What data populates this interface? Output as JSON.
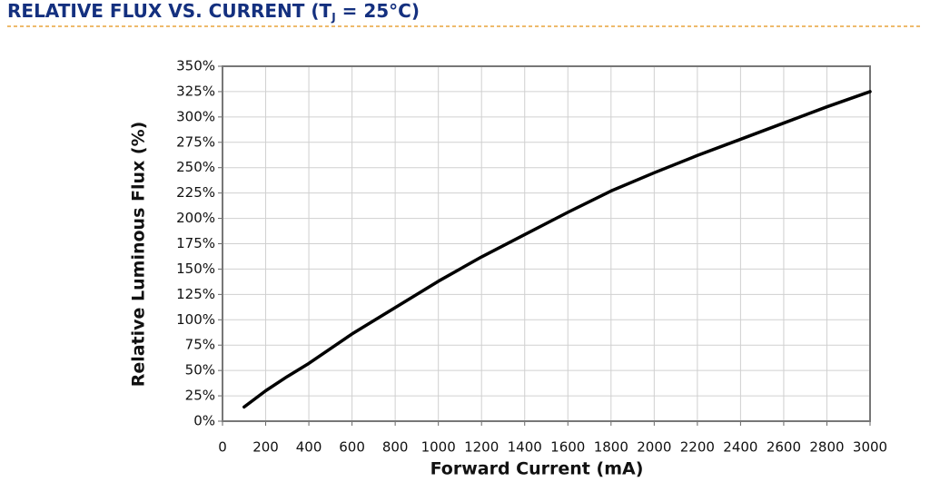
{
  "chart_data": {
    "type": "line",
    "title": [
      "RELATIVE FLUX VS. CURRENT (T",
      "J",
      " = 25°C)"
    ],
    "x_label": "Forward Current (mA)",
    "y_label": "Relative Luminous Flux (%)",
    "x": [
      100,
      200,
      300,
      400,
      600,
      800,
      1000,
      1200,
      1400,
      1600,
      1800,
      2000,
      2200,
      2400,
      2600,
      2800,
      3000
    ],
    "values": [
      14,
      30,
      44,
      57,
      86,
      112,
      138,
      162,
      184,
      206,
      227,
      245,
      262,
      278,
      294,
      310,
      325
    ],
    "color": "#000000",
    "xlim": [
      0,
      3000
    ],
    "xticks": [
      0,
      200,
      400,
      600,
      800,
      1000,
      1200,
      1400,
      1600,
      1800,
      2000,
      2200,
      2400,
      2600,
      2800,
      3000
    ],
    "ylim": [
      0,
      350
    ],
    "yticks": [
      {
        "value": 0,
        "label": "0%"
      },
      {
        "value": 25,
        "label": "25%"
      },
      {
        "value": 50,
        "label": "50%"
      },
      {
        "value": 75,
        "label": "75%"
      },
      {
        "value": 100,
        "label": "100%"
      },
      {
        "value": 125,
        "label": "125%"
      },
      {
        "value": 150,
        "label": "150%"
      },
      {
        "value": 175,
        "label": "175%"
      },
      {
        "value": 200,
        "label": "200%"
      },
      {
        "value": 225,
        "label": "225%"
      },
      {
        "value": 250,
        "label": "250%"
      },
      {
        "value": 275,
        "label": "275%"
      },
      {
        "value": 300,
        "label": "300%"
      },
      {
        "value": 325,
        "label": "325%"
      },
      {
        "value": 350,
        "label": "350%"
      }
    ],
    "grid": true
  }
}
